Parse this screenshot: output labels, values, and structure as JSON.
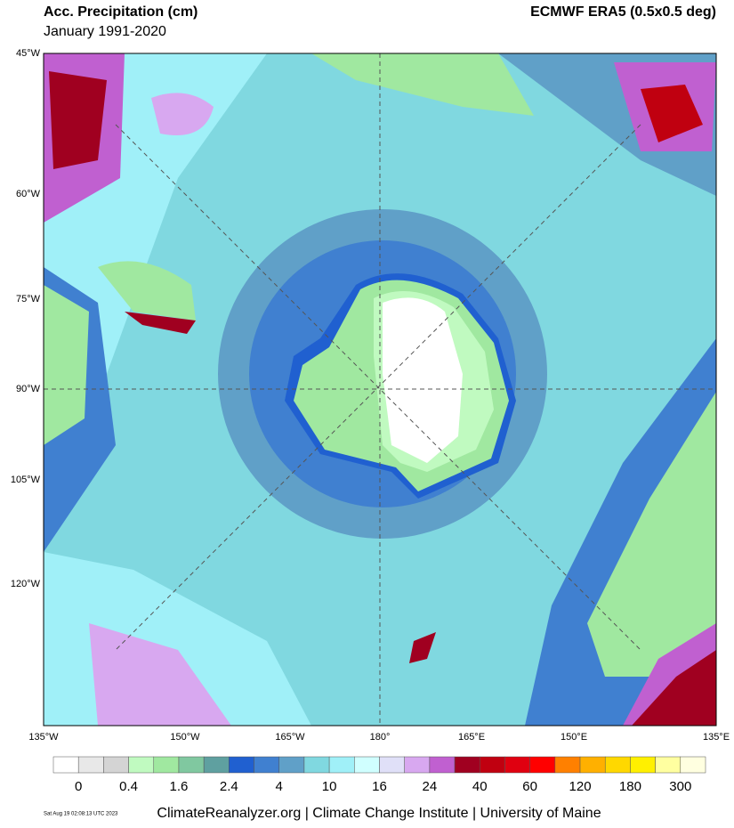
{
  "header": {
    "title": "Acc. Precipitation (cm)",
    "subtitle": "January 1991-2020",
    "source_title": "ECMWF ERA5 (0.5x0.5 deg)"
  },
  "map": {
    "left_labels": [
      "45°W",
      "60°W",
      "75°W",
      "90°W",
      "105°W",
      "120°W"
    ],
    "bottom_labels": [
      "135°W",
      "150°W",
      "165°W",
      "180°",
      "165°E",
      "150°E",
      "135°E"
    ]
  },
  "legend": {
    "colors": [
      "#ffffff",
      "#e8e8e8",
      "#d4d4d4",
      "#c0fac0",
      "#a0e8a0",
      "#80c8a0",
      "#5fa0a0",
      "#2060d0",
      "#4080d0",
      "#60a0c8",
      "#80d8e0",
      "#a0f0f8",
      "#d0ffff",
      "#e0e0f8",
      "#d8a8f0",
      "#c060d0",
      "#a00020",
      "#c00010",
      "#e00010",
      "#ff0000",
      "#ff8000",
      "#ffb000",
      "#ffd800",
      "#fff000",
      "#ffffa0",
      "#ffffe0"
    ],
    "labels": [
      "0",
      "0.4",
      "1.6",
      "2.4",
      "4",
      "10",
      "16",
      "24",
      "40",
      "60",
      "120",
      "180",
      "300"
    ]
  },
  "footer": {
    "timestamp": "Sat Aug 19 02:08:13 UTC 2023",
    "credit": "ClimateReanalyzer.org | Climate Change Institute | University of Maine"
  }
}
